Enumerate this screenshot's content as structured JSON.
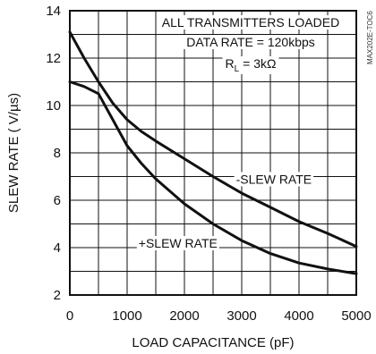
{
  "chart_data": {
    "type": "line",
    "title": "",
    "xlabel": "LOAD CAPACITANCE (pF)",
    "ylabel": "SLEW RATE ( V/µs)",
    "xlim": [
      0,
      5000
    ],
    "ylim": [
      2,
      14
    ],
    "grid": true,
    "x_ticks": [
      0,
      1000,
      2000,
      3000,
      4000,
      5000
    ],
    "y_ticks": [
      2,
      4,
      6,
      8,
      10,
      12,
      14
    ],
    "annotations": {
      "line1": "ALL TRANSMITTERS LOADED",
      "line2": "DATA RATE = 120kbps",
      "rl_main": "R",
      "rl_sub": "L",
      "rl_rest": " = 3kΩ",
      "side_code": "MAX202E-TOC6"
    },
    "series": [
      {
        "name": "-SLEW RATE",
        "x": [
          0,
          250,
          500,
          750,
          1000,
          1250,
          1500,
          2000,
          2500,
          3000,
          3500,
          4000,
          4500,
          5000
        ],
        "values": [
          13.1,
          12.0,
          11.0,
          10.1,
          9.4,
          8.9,
          8.5,
          7.75,
          7.0,
          6.3,
          5.7,
          5.1,
          4.6,
          4.05
        ]
      },
      {
        "name": "+SLEW RATE",
        "x": [
          0,
          250,
          500,
          750,
          1000,
          1250,
          1500,
          2000,
          2500,
          3000,
          3500,
          4000,
          4500,
          5000
        ],
        "values": [
          11.0,
          10.8,
          10.5,
          9.4,
          8.3,
          7.55,
          6.9,
          5.85,
          5.0,
          4.3,
          3.75,
          3.35,
          3.1,
          2.9
        ]
      }
    ],
    "series_labels": [
      {
        "text": "-SLEW RATE",
        "x": 2900,
        "y": 6.7
      },
      {
        "text": "+SLEW RATE",
        "x": 1200,
        "y": 4.0
      }
    ]
  }
}
